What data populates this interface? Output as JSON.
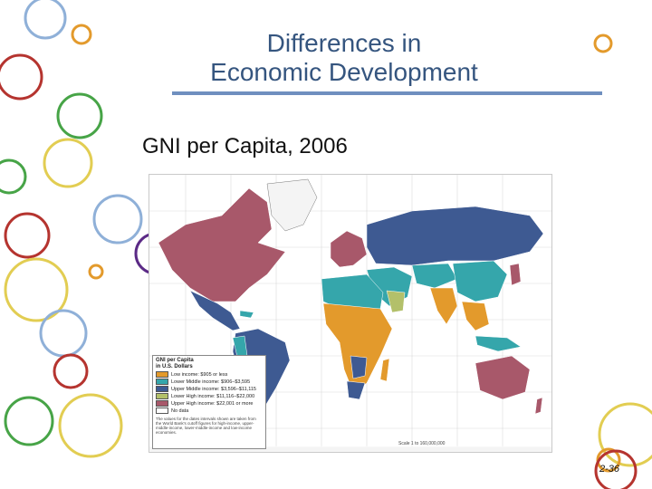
{
  "slide": {
    "title_line1": "Differences in",
    "title_line2": "Economic Development",
    "subtitle": "GNI per Capita, 2006",
    "slide_number": "2-36"
  },
  "legend": {
    "title_line1": "GNI per Capita",
    "title_line2": "in U.S. Dollars",
    "entries": [
      {
        "label": "Low income: $905 or less",
        "color": "#e39a2c"
      },
      {
        "label": "Lower Middle income: $906–$3,595",
        "color": "#35a6ab"
      },
      {
        "label": "Upper Middle income: $3,596–$11,115",
        "color": "#3e5a92"
      },
      {
        "label": "Lower High income: $11,116–$22,000",
        "color": "#b3c06a"
      },
      {
        "label": "Upper High income: $22,001 or more",
        "color": "#a8586a"
      },
      {
        "label": "No data",
        "color": "#ffffff"
      }
    ],
    "note": "The values for the dates intervals shown are taken from the World Bank's cutoff figures for high-income, upper-middle-income, lower-middle-income and low-income economies.",
    "scale": "Scale 1 to 160,000,000"
  },
  "colors": {
    "title": "#35557f",
    "rule": "#6f8fbf",
    "ocean": "#ffffff"
  }
}
